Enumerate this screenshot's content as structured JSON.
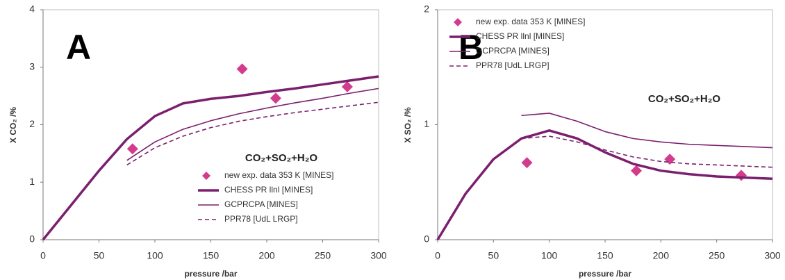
{
  "chart_data": [
    {
      "type": "line",
      "panel_label": "A",
      "annotation": "CO₂+SO₂+H₂O",
      "x_label": "pressure /bar",
      "y_label": "X CO₂ /%",
      "xlim": [
        0,
        300
      ],
      "xticks": [
        0,
        50,
        100,
        150,
        200,
        250,
        300
      ],
      "ylim": [
        0,
        4
      ],
      "yticks": [
        0,
        1,
        2,
        3,
        4
      ],
      "legend": "lower right",
      "series": [
        {
          "name": "new exp. data 353 K [MINES]",
          "type": "scatter",
          "color": "#d23c8c",
          "x": [
            80,
            178,
            208,
            272
          ],
          "values": [
            1.58,
            2.97,
            2.46,
            2.66
          ]
        },
        {
          "name": "CHESS PR llnl [MINES]",
          "type": "line",
          "style": "thick",
          "color": "#7b1f6e",
          "x": [
            0,
            25,
            50,
            75,
            100,
            125,
            150,
            175,
            200,
            225,
            250,
            275,
            300
          ],
          "values": [
            0,
            0.6,
            1.2,
            1.75,
            2.15,
            2.37,
            2.45,
            2.5,
            2.57,
            2.63,
            2.7,
            2.77,
            2.84
          ]
        },
        {
          "name": "GCPRCPA [MINES]",
          "type": "line",
          "style": "thin",
          "color": "#7b1f6e",
          "x": [
            75,
            100,
            125,
            150,
            175,
            200,
            225,
            250,
            275,
            300
          ],
          "values": [
            1.38,
            1.7,
            1.92,
            2.07,
            2.19,
            2.29,
            2.38,
            2.46,
            2.55,
            2.63
          ]
        },
        {
          "name": "PPR78 [UdL LRGP]",
          "type": "line",
          "style": "dashed",
          "color": "#7b1f6e",
          "x": [
            75,
            100,
            125,
            150,
            175,
            200,
            225,
            250,
            275,
            300
          ],
          "values": [
            1.3,
            1.6,
            1.8,
            1.95,
            2.06,
            2.14,
            2.21,
            2.27,
            2.33,
            2.39
          ]
        }
      ]
    },
    {
      "type": "line",
      "panel_label": "B",
      "annotation": "CO₂+SO₂+H₂O",
      "x_label": "pressure /bar",
      "y_label": "X SO₂ /%",
      "xlim": [
        0,
        300
      ],
      "xticks": [
        0,
        50,
        100,
        150,
        200,
        250,
        300
      ],
      "ylim": [
        0,
        2
      ],
      "yticks": [
        0,
        1,
        2
      ],
      "legend": "upper right",
      "series": [
        {
          "name": "new exp. data 353 K [MINES]",
          "type": "scatter",
          "color": "#d23c8c",
          "x": [
            80,
            178,
            208,
            272
          ],
          "values": [
            0.67,
            0.6,
            0.7,
            0.56
          ]
        },
        {
          "name": "CHESS PR llnl [MINES]",
          "type": "line",
          "style": "thick",
          "color": "#7b1f6e",
          "x": [
            0,
            25,
            50,
            75,
            100,
            125,
            150,
            175,
            200,
            225,
            250,
            275,
            300
          ],
          "values": [
            0,
            0.4,
            0.7,
            0.88,
            0.95,
            0.88,
            0.76,
            0.66,
            0.6,
            0.57,
            0.55,
            0.54,
            0.53
          ]
        },
        {
          "name": "GCPRCPA [MINES]",
          "type": "line",
          "style": "thin",
          "color": "#7b1f6e",
          "x": [
            75,
            100,
            125,
            150,
            175,
            200,
            225,
            250,
            275,
            300
          ],
          "values": [
            1.08,
            1.1,
            1.03,
            0.94,
            0.88,
            0.85,
            0.83,
            0.82,
            0.81,
            0.8
          ]
        },
        {
          "name": "PPR78 [UdL LRGP]",
          "type": "line",
          "style": "dashed",
          "color": "#7b1f6e",
          "x": [
            75,
            100,
            125,
            150,
            175,
            200,
            225,
            250,
            275,
            300
          ],
          "values": [
            0.88,
            0.9,
            0.85,
            0.78,
            0.72,
            0.68,
            0.66,
            0.65,
            0.64,
            0.63
          ]
        }
      ]
    }
  ]
}
